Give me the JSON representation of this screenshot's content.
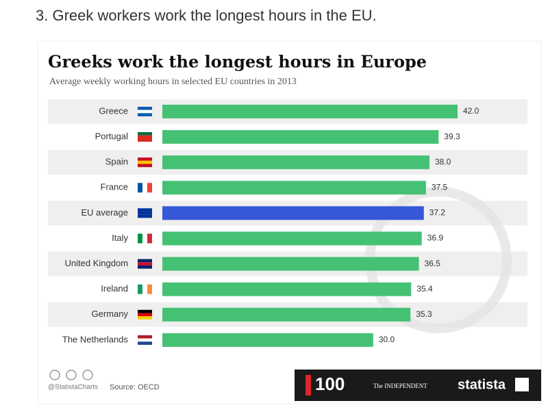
{
  "header": "3. Greek workers work the longest hours in the EU.",
  "chart_data": {
    "type": "bar",
    "orientation": "horizontal",
    "title": "Greeks work the longest hours in Europe",
    "subtitle": "Average weekly working hours in selected EU countries in 2013",
    "categories": [
      "Greece",
      "Portugal",
      "Spain",
      "France",
      "EU average",
      "Italy",
      "United Kingdom",
      "Ireland",
      "Germany",
      "The Netherlands"
    ],
    "values": [
      42,
      39.3,
      38,
      37.5,
      37.2,
      36.9,
      36.5,
      35.4,
      35.3,
      30
    ],
    "value_labels": [
      "42.0",
      "39.3",
      "38.0",
      "37.5",
      "37.2",
      "36.9",
      "36.5",
      "35.4",
      "35.3",
      "30.0"
    ],
    "colors": [
      "#45c174",
      "#45c174",
      "#45c174",
      "#45c174",
      "#3557d8",
      "#45c174",
      "#45c174",
      "#45c174",
      "#45c174",
      "#45c174"
    ],
    "credit": "@StatistaCharts",
    "source": "Source: OECD"
  },
  "footer": {
    "logo": "100",
    "partner": "The INDEPENDENT",
    "brand": "statista"
  }
}
